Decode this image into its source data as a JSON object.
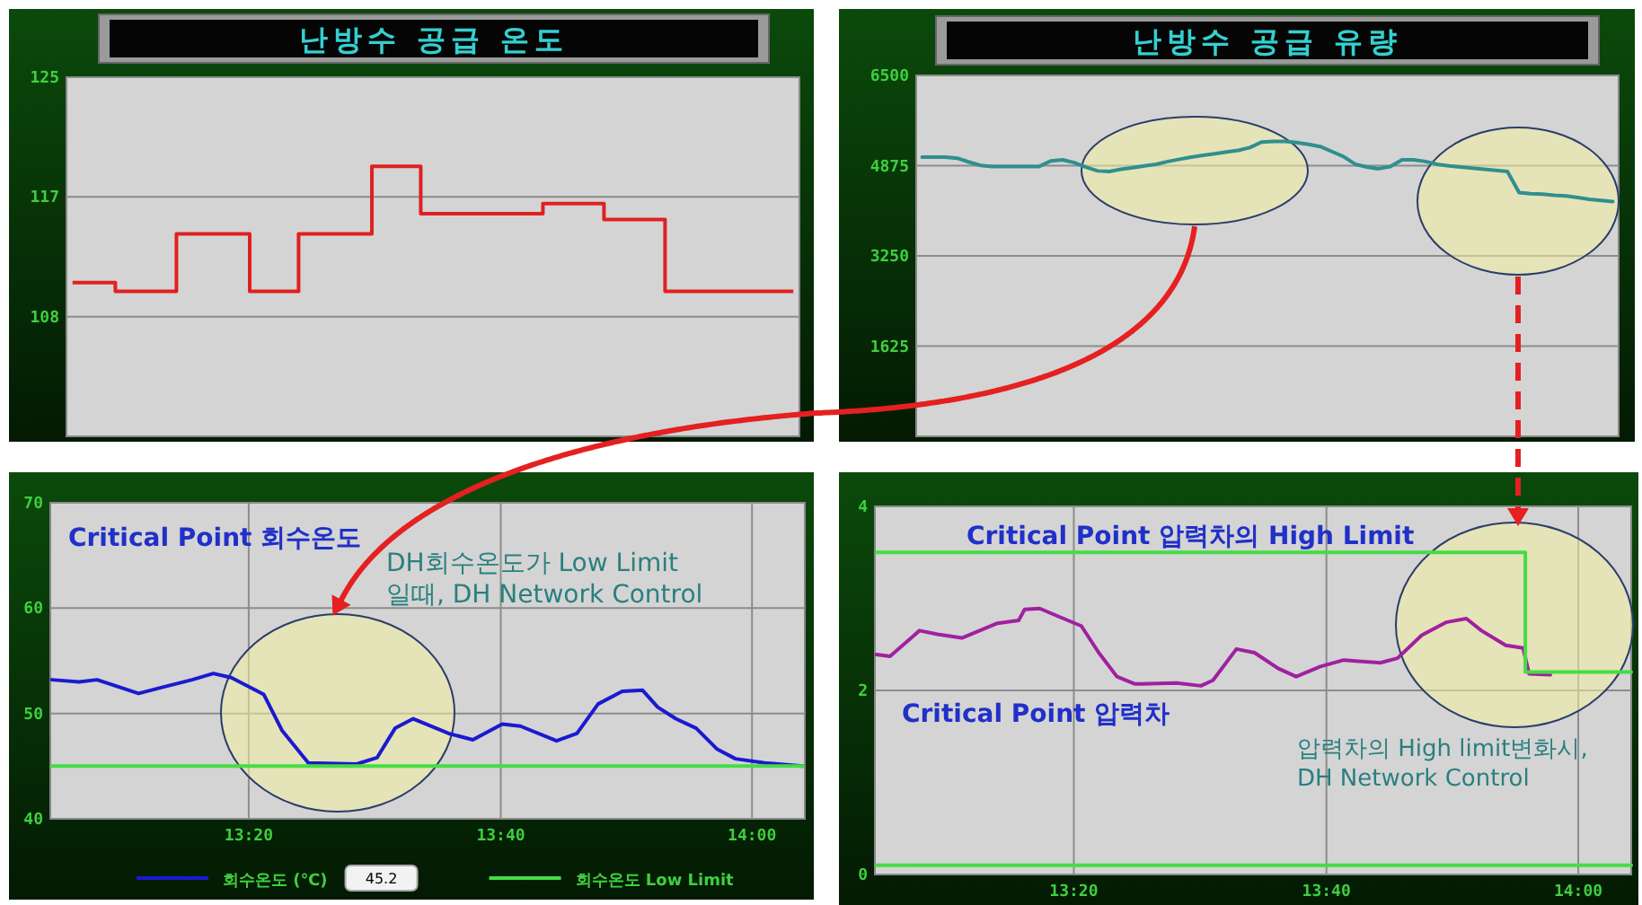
{
  "chart_data": [
    {
      "type": "step",
      "title": "난방수 공급 온도",
      "color": "#e02020",
      "categories": [
        null,
        null,
        null,
        null,
        null,
        null,
        null,
        null,
        null,
        null,
        null,
        null,
        null,
        null,
        null,
        null,
        null,
        null,
        null,
        null,
        null,
        null,
        null,
        null,
        null,
        null,
        null,
        null,
        null,
        null,
        null,
        null,
        null,
        null,
        null,
        null,
        null,
        null,
        null,
        null,
        null,
        null,
        null,
        null,
        null,
        null,
        null,
        null,
        null,
        null,
        null,
        null,
        null,
        null,
        null,
        null,
        null,
        null,
        null,
        null
      ],
      "values": [
        110.7,
        110.7,
        110.7,
        110.7,
        110.1,
        110.1,
        110.1,
        110.1,
        110.1,
        114.1,
        114.1,
        114.1,
        114.1,
        114.1,
        114.1,
        110.1,
        110.1,
        110.1,
        110.1,
        114.1,
        114.1,
        114.1,
        114.1,
        114.1,
        114.1,
        118.8,
        118.8,
        118.8,
        118.8,
        115.5,
        115.5,
        115.5,
        115.5,
        115.5,
        115.5,
        115.5,
        115.5,
        115.5,
        115.5,
        116.2,
        116.2,
        116.2,
        116.2,
        116.2,
        115.1,
        115.1,
        115.1,
        115.1,
        115.1,
        110.1,
        110.1,
        110.1,
        110.1,
        110.1,
        110.1,
        110.1,
        110.1,
        110.1,
        110.1,
        110.1
      ],
      "ylim": [
        100,
        125
      ],
      "yticks": [
        {
          "value": 108.33,
          "label": "108"
        },
        {
          "value": 116.67,
          "label": "117"
        },
        125
      ],
      "grid": "y",
      "tick_labels": "y"
    },
    {
      "type": "line",
      "title": "난방수 공급 유량",
      "color": "#2f8f8f",
      "categories": [
        null,
        null,
        null,
        null,
        null,
        null,
        null,
        null,
        null,
        null,
        null,
        null,
        null,
        null,
        null,
        null,
        null,
        null,
        null,
        null,
        null,
        null,
        null,
        null,
        null,
        null,
        null,
        null,
        null,
        null,
        null,
        null,
        null,
        null,
        null,
        null,
        null,
        null,
        null,
        null,
        null,
        null,
        null,
        null,
        null,
        null,
        null,
        null,
        null,
        null,
        null,
        null,
        null,
        null,
        null,
        null,
        null,
        null,
        null,
        null
      ],
      "values": [
        5030,
        5030,
        5030,
        5010,
        4940,
        4880,
        4860,
        4860,
        4860,
        4860,
        4860,
        4960,
        4980,
        4930,
        4850,
        4780,
        4770,
        4810,
        4840,
        4870,
        4900,
        4950,
        4990,
        5030,
        5060,
        5090,
        5120,
        5150,
        5200,
        5300,
        5310,
        5310,
        5290,
        5260,
        5220,
        5130,
        5040,
        4900,
        4850,
        4820,
        4860,
        4980,
        4980,
        4950,
        4900,
        4870,
        4850,
        4830,
        4810,
        4790,
        4770,
        4390,
        4370,
        4360,
        4340,
        4330,
        4300,
        4270,
        4250,
        4230
      ],
      "ylim": [
        0,
        6500
      ],
      "yticks": [
        1625,
        3250,
        4875,
        6500
      ],
      "grid": "y",
      "tick_labels": "y"
    },
    {
      "type": "line",
      "series": [
        {
          "name": "회수온도 (℃)",
          "color": "#1a1ad0",
          "x": [
            13.072,
            13.108,
            13.132,
            13.187,
            13.219,
            13.258,
            13.286,
            13.31,
            13.353,
            13.377,
            13.412,
            13.476,
            13.503,
            13.527,
            13.551,
            13.598,
            13.63,
            13.669,
            13.693,
            13.741,
            13.768,
            13.796,
            13.828,
            13.855,
            13.875,
            13.899,
            13.926,
            13.954,
            13.978,
            14.017,
            14.067
          ],
          "values": [
            53.2,
            53.0,
            53.2,
            51.9,
            52.5,
            53.2,
            53.8,
            53.4,
            51.8,
            48.4,
            45.3,
            45.2,
            45.8,
            48.6,
            49.5,
            48.1,
            47.5,
            49.0,
            48.8,
            47.4,
            48.1,
            50.9,
            52.1,
            52.2,
            50.6,
            49.5,
            48.6,
            46.6,
            45.7,
            45.3,
            45.0
          ]
        },
        {
          "name": "회수온도 Low Limit",
          "color": "#44dd44",
          "x": [
            13.072,
            14.067
          ],
          "values": [
            45,
            45
          ]
        }
      ],
      "xlim": [
        13.07,
        14.07
      ],
      "xticks": [
        {
          "value": 13.333,
          "label": "13:20"
        },
        {
          "value": 13.667,
          "label": "13:40"
        },
        {
          "value": 14,
          "label": "14:00"
        }
      ],
      "ylim": [
        40,
        70
      ],
      "yticks": [
        40,
        50,
        60,
        70
      ],
      "grid": true,
      "legend": "bottom",
      "annotations": [
        "Critical Point 회수온도",
        "DH회수온도가 Low Limit 일때, DH Network Control",
        "45.2"
      ]
    },
    {
      "type": "line",
      "series": [
        {
          "color": "#a020a0",
          "x": [
            13.072,
            13.09,
            13.129,
            13.153,
            13.185,
            13.232,
            13.26,
            13.268,
            13.288,
            13.311,
            13.343,
            13.366,
            13.39,
            13.414,
            13.469,
            13.501,
            13.517,
            13.548,
            13.572,
            13.603,
            13.627,
            13.659,
            13.69,
            13.738,
            13.761,
            13.793,
            13.825,
            13.852,
            13.872,
            13.904,
            13.927,
            13.935,
            13.963
          ],
          "values": [
            2.39,
            2.37,
            2.65,
            2.61,
            2.57,
            2.73,
            2.76,
            2.88,
            2.89,
            2.81,
            2.7,
            2.41,
            2.15,
            2.07,
            2.08,
            2.05,
            2.11,
            2.45,
            2.41,
            2.24,
            2.15,
            2.26,
            2.33,
            2.3,
            2.35,
            2.6,
            2.74,
            2.78,
            2.65,
            2.49,
            2.46,
            2.18,
            2.17
          ]
        },
        {
          "color": "#44dd44",
          "x": [
            13.072,
            13.93,
            13.93,
            14.07
          ],
          "values": [
            3.5,
            3.5,
            2.2,
            2.2
          ]
        },
        {
          "color": "#44dd44",
          "x": [
            13.072,
            14.07
          ],
          "values": [
            0.1,
            0.1
          ]
        }
      ],
      "xlim": [
        13.07,
        14.07
      ],
      "xticks": [
        {
          "value": 13.333,
          "label": "13:20"
        },
        {
          "value": 13.667,
          "label": "13:40"
        },
        {
          "value": 14,
          "label": "14:00"
        }
      ],
      "ylim": [
        0,
        4
      ],
      "yticks": [
        0,
        2,
        4
      ],
      "grid": true,
      "annotations": [
        "Critical Point 압력차의 High Limit",
        "Critical Point 압력차",
        "압력차의 High limit변화시, DH Network Control"
      ]
    }
  ]
}
